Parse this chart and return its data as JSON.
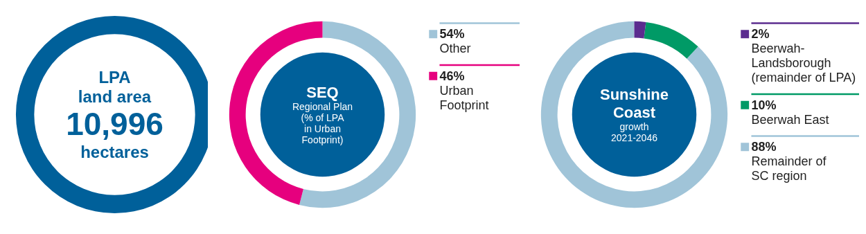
{
  "chart_data": [
    {
      "type": "other",
      "title": "LPA\nland area",
      "annotations": [
        "10,996",
        "hectares"
      ]
    },
    {
      "type": "donut",
      "title": "SEQ",
      "subtitle": "Regional Plan\n(% of LPA\nin Urban\nFootprint)",
      "categories": [
        "Other",
        "Urban\nFootprint"
      ],
      "values": [
        54,
        46
      ],
      "legend": "right",
      "value_labels": [
        "54%",
        "46%"
      ],
      "colors": [
        "#a0c4d8",
        "#e6007e"
      ]
    },
    {
      "type": "donut",
      "title": "Sunshine\nCoast",
      "subtitle": "growth\n2021-2046",
      "categories": [
        "Beerwah-\nLandsborough\n(remainder of LPA)",
        "Beerwah East",
        "Remainder of\nSC region"
      ],
      "values": [
        2,
        10,
        88
      ],
      "legend": "right",
      "value_labels": [
        "2%",
        "10%",
        "88%"
      ],
      "colors": [
        "#5b2c8f",
        "#009a66",
        "#a0c4d8"
      ]
    }
  ]
}
